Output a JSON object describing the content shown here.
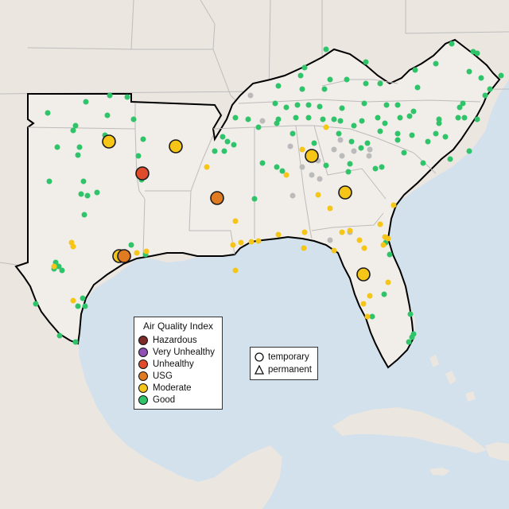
{
  "legend": {
    "title": "Air Quality Index",
    "categories": [
      {
        "label": "Hazardous",
        "color": "#7e2a29"
      },
      {
        "label": "Very Unhealthy",
        "color": "#8f4fb3"
      },
      {
        "label": "Unhealthy",
        "color": "#e04b2c"
      },
      {
        "label": "USG",
        "color": "#e07b22"
      },
      {
        "label": "Moderate",
        "color": "#f5c518"
      },
      {
        "label": "Good",
        "color": "#2fc46a"
      }
    ],
    "no_data_color": "#bbbbbb"
  },
  "shape_legend": {
    "temporary_label": "temporary",
    "permanent_label": "permanent"
  },
  "colors": {
    "ocean": "#d3e1ec",
    "land": "#ede8e2",
    "region_land": "#f1ede8",
    "region_outline": "#000000",
    "state_border": "#b8b8b8"
  },
  "monitors": {
    "large": [
      {
        "category": "Moderate"
      },
      {
        "category": "Moderate"
      },
      {
        "category": "Unhealthy"
      },
      {
        "category": "USG"
      },
      {
        "category": "Moderate"
      },
      {
        "category": "USG"
      },
      {
        "category": "Moderate"
      },
      {
        "category": "Moderate"
      },
      {
        "category": "Moderate"
      }
    ]
  }
}
